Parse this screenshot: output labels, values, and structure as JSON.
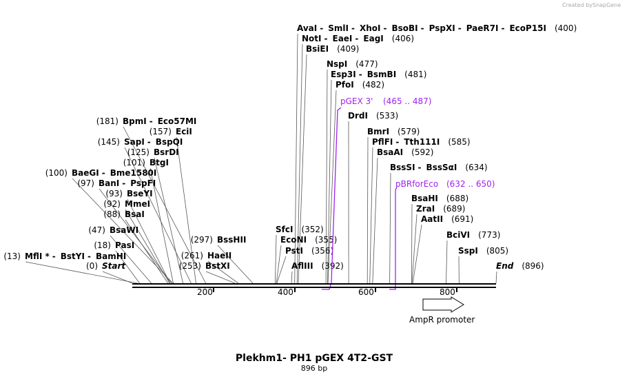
{
  "map": {
    "title": "Plekhm1- PH1 pGEX 4T2-GST",
    "length_label": "896 bp",
    "credit_text": "Created by",
    "credit_brand": "SnapGene",
    "ruler_ticks": [
      "200",
      "400",
      "600",
      "800"
    ],
    "feature_label": "AmpR promoter",
    "primers": [
      {
        "name": "pGEX 3'",
        "range": "(465 .. 487)"
      },
      {
        "name": "pBRforEco",
        "range": "(632 .. 650)"
      }
    ],
    "sites": [
      {
        "parts": [
          "MflI *",
          "BstYI",
          "BamHI"
        ],
        "pos": "(13)"
      },
      {
        "parts": [
          "Start"
        ],
        "pos": "(0)"
      },
      {
        "parts": [
          "PasI"
        ],
        "pos": "(18)"
      },
      {
        "parts": [
          "BsaWI"
        ],
        "pos": "(47)"
      },
      {
        "parts": [
          "BsaI"
        ],
        "pos": "(88)"
      },
      {
        "parts": [
          "MmeI"
        ],
        "pos": "(92)"
      },
      {
        "parts": [
          "BseYI"
        ],
        "pos": "(93)"
      },
      {
        "parts": [
          "BanI",
          "PspFI"
        ],
        "pos": "(97)"
      },
      {
        "parts": [
          "BaeGI",
          "Bme1580I"
        ],
        "pos": "(100)"
      },
      {
        "parts": [
          "BtgI"
        ],
        "pos": "(101)"
      },
      {
        "parts": [
          "BsrDI"
        ],
        "pos": "(125)"
      },
      {
        "parts": [
          "SapI",
          "BspQI"
        ],
        "pos": "(145)"
      },
      {
        "parts": [
          "EciI"
        ],
        "pos": "(157)"
      },
      {
        "parts": [
          "BpmI",
          "Eco57MI"
        ],
        "pos": "(181)"
      },
      {
        "parts": [
          "BstXI"
        ],
        "pos": "(253)"
      },
      {
        "parts": [
          "HaeII"
        ],
        "pos": "(261)"
      },
      {
        "parts": [
          "BssHII"
        ],
        "pos": "(297)"
      },
      {
        "parts": [
          "AflIII"
        ],
        "pos": "(392)"
      },
      {
        "parts": [
          "PstI"
        ],
        "pos": "(356)"
      },
      {
        "parts": [
          "EcoNI"
        ],
        "pos": "(355)"
      },
      {
        "parts": [
          "SfcI"
        ],
        "pos": "(352)"
      },
      {
        "parts": [
          "AvaI",
          "SmlI",
          "XhoI",
          "BsoBI",
          "PspXI",
          "PaeR7I",
          "EcoP15I"
        ],
        "pos": "(400)"
      },
      {
        "parts": [
          "NotI",
          "EaeI",
          "EagI"
        ],
        "pos": "(406)"
      },
      {
        "parts": [
          "BsiEI"
        ],
        "pos": "(409)"
      },
      {
        "parts": [
          "NspI"
        ],
        "pos": "(477)"
      },
      {
        "parts": [
          "Esp3I",
          "BsmBI"
        ],
        "pos": "(481)"
      },
      {
        "parts": [
          "PfoI"
        ],
        "pos": "(482)"
      },
      {
        "parts": [
          "DrdI"
        ],
        "pos": "(533)"
      },
      {
        "parts": [
          "BmrI"
        ],
        "pos": "(579)"
      },
      {
        "parts": [
          "PflFI",
          "Tth111I"
        ],
        "pos": "(585)"
      },
      {
        "parts": [
          "BsaAI"
        ],
        "pos": "(592)"
      },
      {
        "parts": [
          "BssSI",
          "BssSαI"
        ],
        "pos": "(634)"
      },
      {
        "parts": [
          "BsaHI"
        ],
        "pos": "(688)"
      },
      {
        "parts": [
          "ZraI"
        ],
        "pos": "(689)"
      },
      {
        "parts": [
          "AatII"
        ],
        "pos": "(691)"
      },
      {
        "parts": [
          "BciVI"
        ],
        "pos": "(773)"
      },
      {
        "parts": [
          "SspI"
        ],
        "pos": "(805)"
      },
      {
        "parts": [
          "End"
        ],
        "pos": "(896)"
      }
    ],
    "colors": {
      "primer": "#a020f0",
      "leader": "#555555",
      "backbone": "#000000"
    }
  }
}
